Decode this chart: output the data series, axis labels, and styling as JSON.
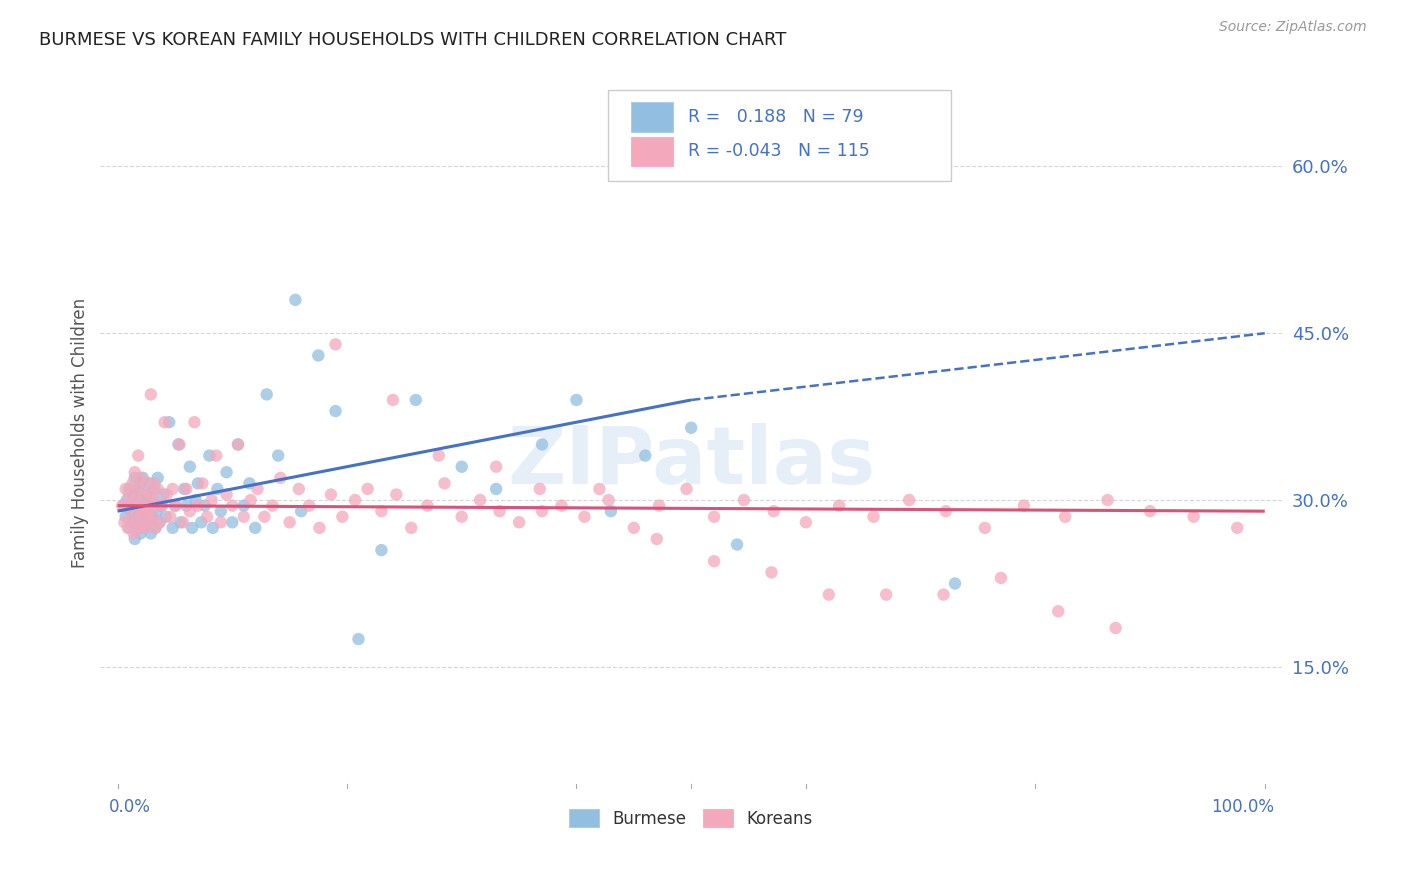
{
  "title": "BURMESE VS KOREAN FAMILY HOUSEHOLDS WITH CHILDREN CORRELATION CHART",
  "source": "Source: ZipAtlas.com",
  "ylabel": "Family Households with Children",
  "yticks": [
    0.15,
    0.3,
    0.45,
    0.6
  ],
  "ytick_labels": [
    "15.0%",
    "30.0%",
    "45.0%",
    "60.0%"
  ],
  "xlim": [
    -0.015,
    1.015
  ],
  "ylim": [
    0.04,
    0.68
  ],
  "watermark": "ZIPatlas",
  "legend_burmese_R": "0.188",
  "legend_burmese_N": "79",
  "legend_korean_R": "-0.043",
  "legend_korean_N": "115",
  "burmese_color": "#92BEE0",
  "korean_color": "#F4A8BC",
  "burmese_line_color": "#4472C4",
  "korean_line_color": "#D9527A",
  "background_color": "#FFFFFF",
  "grid_color": "#CCCCCC",
  "text_color": "#4472C4",
  "legend_text_color": "#4472C4",
  "burmese_line_y0": 0.29,
  "burmese_line_y1_solid": 0.39,
  "burmese_line_x1_solid": 0.5,
  "burmese_line_y1_dash": 0.45,
  "korean_line_y0": 0.295,
  "korean_line_y1": 0.29,
  "burmese_x": [
    0.005,
    0.007,
    0.008,
    0.01,
    0.01,
    0.012,
    0.013,
    0.014,
    0.015,
    0.015,
    0.016,
    0.017,
    0.018,
    0.018,
    0.019,
    0.02,
    0.02,
    0.021,
    0.022,
    0.022,
    0.023,
    0.024,
    0.025,
    0.026,
    0.027,
    0.028,
    0.029,
    0.03,
    0.031,
    0.032,
    0.033,
    0.034,
    0.035,
    0.036,
    0.038,
    0.04,
    0.042,
    0.045,
    0.048,
    0.05,
    0.053,
    0.055,
    0.058,
    0.06,
    0.063,
    0.065,
    0.068,
    0.07,
    0.073,
    0.076,
    0.08,
    0.083,
    0.087,
    0.09,
    0.095,
    0.1,
    0.105,
    0.11,
    0.115,
    0.12,
    0.13,
    0.14,
    0.155,
    0.16,
    0.175,
    0.19,
    0.21,
    0.23,
    0.26,
    0.3,
    0.33,
    0.37,
    0.4,
    0.43,
    0.46,
    0.5,
    0.54,
    0.63,
    0.73
  ],
  "burmese_y": [
    0.295,
    0.285,
    0.3,
    0.31,
    0.275,
    0.29,
    0.28,
    0.305,
    0.32,
    0.265,
    0.295,
    0.275,
    0.285,
    0.31,
    0.3,
    0.27,
    0.315,
    0.285,
    0.295,
    0.32,
    0.275,
    0.29,
    0.305,
    0.28,
    0.295,
    0.315,
    0.27,
    0.285,
    0.3,
    0.31,
    0.275,
    0.29,
    0.32,
    0.28,
    0.295,
    0.305,
    0.285,
    0.37,
    0.275,
    0.295,
    0.35,
    0.28,
    0.31,
    0.295,
    0.33,
    0.275,
    0.3,
    0.315,
    0.28,
    0.295,
    0.34,
    0.275,
    0.31,
    0.29,
    0.325,
    0.28,
    0.35,
    0.295,
    0.315,
    0.275,
    0.395,
    0.34,
    0.48,
    0.29,
    0.43,
    0.38,
    0.175,
    0.255,
    0.39,
    0.33,
    0.31,
    0.35,
    0.39,
    0.29,
    0.34,
    0.365,
    0.26,
    0.615,
    0.225
  ],
  "korean_x": [
    0.004,
    0.006,
    0.007,
    0.008,
    0.009,
    0.01,
    0.011,
    0.012,
    0.013,
    0.014,
    0.015,
    0.015,
    0.016,
    0.017,
    0.018,
    0.018,
    0.019,
    0.02,
    0.02,
    0.021,
    0.022,
    0.023,
    0.024,
    0.025,
    0.026,
    0.027,
    0.028,
    0.029,
    0.03,
    0.031,
    0.032,
    0.033,
    0.034,
    0.035,
    0.037,
    0.039,
    0.041,
    0.043,
    0.046,
    0.048,
    0.051,
    0.054,
    0.057,
    0.06,
    0.063,
    0.067,
    0.07,
    0.074,
    0.078,
    0.082,
    0.086,
    0.09,
    0.095,
    0.1,
    0.105,
    0.11,
    0.116,
    0.122,
    0.128,
    0.135,
    0.142,
    0.15,
    0.158,
    0.167,
    0.176,
    0.186,
    0.196,
    0.207,
    0.218,
    0.23,
    0.243,
    0.256,
    0.27,
    0.285,
    0.3,
    0.316,
    0.333,
    0.35,
    0.368,
    0.387,
    0.407,
    0.428,
    0.45,
    0.472,
    0.496,
    0.52,
    0.546,
    0.572,
    0.6,
    0.629,
    0.659,
    0.69,
    0.722,
    0.756,
    0.79,
    0.826,
    0.863,
    0.9,
    0.938,
    0.976,
    0.19,
    0.24,
    0.28,
    0.33,
    0.37,
    0.42,
    0.47,
    0.52,
    0.57,
    0.62,
    0.67,
    0.72,
    0.77,
    0.82,
    0.87
  ],
  "korean_y": [
    0.295,
    0.28,
    0.31,
    0.295,
    0.275,
    0.305,
    0.285,
    0.295,
    0.315,
    0.27,
    0.3,
    0.325,
    0.28,
    0.295,
    0.31,
    0.34,
    0.275,
    0.29,
    0.32,
    0.285,
    0.305,
    0.295,
    0.275,
    0.315,
    0.29,
    0.28,
    0.305,
    0.395,
    0.285,
    0.3,
    0.315,
    0.275,
    0.295,
    0.31,
    0.28,
    0.295,
    0.37,
    0.305,
    0.285,
    0.31,
    0.295,
    0.35,
    0.28,
    0.31,
    0.29,
    0.37,
    0.295,
    0.315,
    0.285,
    0.3,
    0.34,
    0.28,
    0.305,
    0.295,
    0.35,
    0.285,
    0.3,
    0.31,
    0.285,
    0.295,
    0.32,
    0.28,
    0.31,
    0.295,
    0.275,
    0.305,
    0.285,
    0.3,
    0.31,
    0.29,
    0.305,
    0.275,
    0.295,
    0.315,
    0.285,
    0.3,
    0.29,
    0.28,
    0.31,
    0.295,
    0.285,
    0.3,
    0.275,
    0.295,
    0.31,
    0.285,
    0.3,
    0.29,
    0.28,
    0.295,
    0.285,
    0.3,
    0.29,
    0.275,
    0.295,
    0.285,
    0.3,
    0.29,
    0.285,
    0.275,
    0.44,
    0.39,
    0.34,
    0.33,
    0.29,
    0.31,
    0.265,
    0.245,
    0.235,
    0.215,
    0.215,
    0.215,
    0.23,
    0.2,
    0.185
  ]
}
